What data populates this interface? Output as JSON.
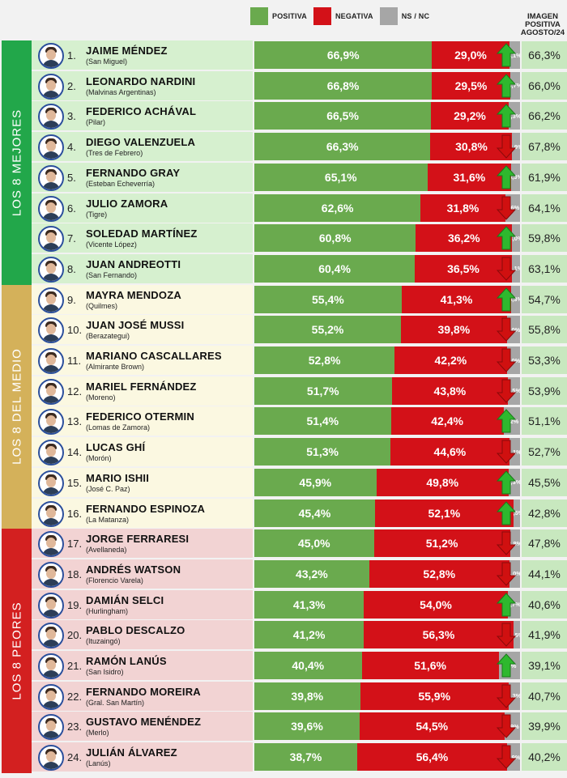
{
  "legend": [
    {
      "label": "POSITIVA",
      "color": "#6aaa4e"
    },
    {
      "label": "NEGATIVA",
      "color": "#d31118"
    },
    {
      "label": "NS / NC",
      "color": "#a6a6a6"
    }
  ],
  "prev_header": [
    "IMAGEN",
    "POSITIVA",
    "AGOSTO/24"
  ],
  "sections": [
    {
      "label": "LOS 8 MEJORES",
      "color": "#22a74a",
      "row_bg": "#d6f0cf"
    },
    {
      "label": "LOS 8 DEL MEDIO",
      "color": "#d4b15a",
      "row_bg": "#fbf8e1"
    },
    {
      "label": "LOS 8 PEORES",
      "color": "#d32020",
      "row_bg": "#f2d3d3"
    }
  ],
  "chart_data": {
    "type": "bar",
    "stacked": true,
    "orientation": "horizontal",
    "series": [
      {
        "name": "POSITIVA",
        "color": "#6aaa4e"
      },
      {
        "name": "NEGATIVA",
        "color": "#d31118"
      },
      {
        "name": "NS / NC",
        "color": "#a6a6a6"
      }
    ],
    "rows": [
      {
        "rank": "1.",
        "name": "JAIME MÉNDEZ",
        "town": "(San Miguel)",
        "pos": 66.9,
        "pos_label": "66,9%",
        "neg": 29.0,
        "neg_label": "29,0%",
        "ns": 4.1,
        "ns_label": "4,1%",
        "trend": "up",
        "prev": "66,3%",
        "section": 0
      },
      {
        "rank": "2.",
        "name": "LEONARDO NARDINI",
        "town": "(Malvinas Argentinas)",
        "pos": 66.8,
        "pos_label": "66,8%",
        "neg": 29.5,
        "neg_label": "29,5%",
        "ns": 3.7,
        "ns_label": "3,7%",
        "trend": "up",
        "prev": "66,0%",
        "section": 0
      },
      {
        "rank": "3.",
        "name": "FEDERICO ACHÁVAL",
        "town": "(Pilar)",
        "pos": 66.5,
        "pos_label": "66,5%",
        "neg": 29.2,
        "neg_label": "29,2%",
        "ns": 4.3,
        "ns_label": "4,3%",
        "trend": "up",
        "prev": "66,2%",
        "section": 0
      },
      {
        "rank": "4.",
        "name": "DIEGO VALENZUELA",
        "town": "(Tres de Febrero)",
        "pos": 66.3,
        "pos_label": "66,3%",
        "neg": 30.8,
        "neg_label": "30,8%",
        "ns": 2.9,
        "ns_label": "2,9%",
        "trend": "down",
        "prev": "67,8%",
        "section": 0
      },
      {
        "rank": "5.",
        "name": "FERNANDO GRAY",
        "town": "(Esteban Echeverría)",
        "pos": 65.1,
        "pos_label": "65,1%",
        "neg": 31.6,
        "neg_label": "31,6%",
        "ns": 3.3,
        "ns_label": "3,3%",
        "trend": "up",
        "prev": "61,9%",
        "section": 0
      },
      {
        "rank": "6.",
        "name": "JULIO ZAMORA",
        "town": "(Tigre)",
        "pos": 62.6,
        "pos_label": "62,6%",
        "neg": 31.8,
        "neg_label": "31,8%",
        "ns": 5.6,
        "ns_label": "5,6%",
        "trend": "down",
        "prev": "64,1%",
        "section": 0
      },
      {
        "rank": "7.",
        "name": "SOLEDAD MARTÍNEZ",
        "town": "(Vicente López)",
        "pos": 60.8,
        "pos_label": "60,8%",
        "neg": 36.2,
        "neg_label": "36,2%",
        "ns": 3.0,
        "ns_label": "3,0%",
        "trend": "up",
        "prev": "59,8%",
        "section": 0
      },
      {
        "rank": "8.",
        "name": "JUAN ANDREOTTI",
        "town": "(San Fernando)",
        "pos": 60.4,
        "pos_label": "60,4%",
        "neg": 36.5,
        "neg_label": "36,5%",
        "ns": 3.1,
        "ns_label": "3,1%",
        "trend": "down",
        "prev": "63,1%",
        "section": 0
      },
      {
        "rank": "9.",
        "name": "MAYRA MENDOZA",
        "town": "(Quilmes)",
        "pos": 55.4,
        "pos_label": "55,4%",
        "neg": 41.3,
        "neg_label": "41,3%",
        "ns": 3.3,
        "ns_label": "3,3%",
        "trend": "up",
        "prev": "54,7%",
        "section": 1
      },
      {
        "rank": "10.",
        "name": "JUAN JOSÉ MUSSI",
        "town": "(Berazategui)",
        "pos": 55.2,
        "pos_label": "55,2%",
        "neg": 39.8,
        "neg_label": "39,8%",
        "ns": 5.0,
        "ns_label": "5,0%",
        "trend": "down",
        "prev": "55,8%",
        "section": 1
      },
      {
        "rank": "11.",
        "name": "MARIANO CASCALLARES",
        "town": "(Almirante Brown)",
        "pos": 52.8,
        "pos_label": "52,8%",
        "neg": 42.2,
        "neg_label": "42,2%",
        "ns": 5.0,
        "ns_label": "5,0%",
        "trend": "down",
        "prev": "53,3%",
        "section": 1
      },
      {
        "rank": "12.",
        "name": "MARIEL FERNÁNDEZ",
        "town": "(Moreno)",
        "pos": 51.7,
        "pos_label": "51,7%",
        "neg": 43.8,
        "neg_label": "43,8%",
        "ns": 4.5,
        "ns_label": "4,5%",
        "trend": "down",
        "prev": "53,9%",
        "section": 1
      },
      {
        "rank": "13.",
        "name": "FEDERICO OTERMIN",
        "town": "(Lomas de Zamora)",
        "pos": 51.4,
        "pos_label": "51,4%",
        "neg": 42.4,
        "neg_label": "42,4%",
        "ns": 6.2,
        "ns_label": "6,2%",
        "trend": "up",
        "prev": "51,1%",
        "section": 1
      },
      {
        "rank": "14.",
        "name": "LUCAS GHÍ",
        "town": "(Morón)",
        "pos": 51.3,
        "pos_label": "51,3%",
        "neg": 44.6,
        "neg_label": "44,6%",
        "ns": 4.1,
        "ns_label": "4,1%",
        "trend": "down",
        "prev": "52,7%",
        "section": 1
      },
      {
        "rank": "15.",
        "name": "MARIO ISHII",
        "town": "(José C. Paz)",
        "pos": 45.9,
        "pos_label": "45,9%",
        "neg": 49.8,
        "neg_label": "49,8%",
        "ns": 4.3,
        "ns_label": "4,3%",
        "trend": "up",
        "prev": "45,5%",
        "section": 1
      },
      {
        "rank": "16.",
        "name": "FERNANDO ESPINOZA",
        "town": "(La Matanza)",
        "pos": 45.4,
        "pos_label": "45,4%",
        "neg": 52.1,
        "neg_label": "52,1%",
        "ns": 2.5,
        "ns_label": "2,5%",
        "trend": "up",
        "prev": "42,8%",
        "section": 1
      },
      {
        "rank": "17.",
        "name": "JORGE FERRARESI",
        "town": "(Avellaneda)",
        "pos": 45.0,
        "pos_label": "45,0%",
        "neg": 51.2,
        "neg_label": "51,2%",
        "ns": 3.8,
        "ns_label": "3,8%",
        "trend": "down",
        "prev": "47,8%",
        "section": 2
      },
      {
        "rank": "18.",
        "name": "ANDRÉS WATSON",
        "town": "(Florencio Varela)",
        "pos": 43.2,
        "pos_label": "43,2%",
        "neg": 52.8,
        "neg_label": "52,8%",
        "ns": 4.0,
        "ns_label": "4,0%",
        "trend": "down",
        "prev": "44,1%",
        "section": 2
      },
      {
        "rank": "19.",
        "name": "DAMIÁN SELCI",
        "town": "(Hurlingham)",
        "pos": 41.3,
        "pos_label": "41,3%",
        "neg": 54.0,
        "neg_label": "54,0%",
        "ns": 4.7,
        "ns_label": "4,7%",
        "trend": "up",
        "prev": "40,6%",
        "section": 2
      },
      {
        "rank": "20.",
        "name": "PABLO DESCALZO",
        "town": "(Ituzaingó)",
        "pos": 41.2,
        "pos_label": "41,2%",
        "neg": 56.3,
        "neg_label": "56,3%",
        "ns": 2.5,
        "ns_label": "2,5%",
        "trend": "down",
        "prev": "41,9%",
        "section": 2
      },
      {
        "rank": "21.",
        "name": "RAMÓN LANÚS",
        "town": "(San Isidro)",
        "pos": 40.4,
        "pos_label": "40,4%",
        "neg": 51.6,
        "neg_label": "51,6%",
        "ns": 8.0,
        "ns_label": "8,0%",
        "trend": "up",
        "prev": "39,1%",
        "section": 2
      },
      {
        "rank": "22.",
        "name": "FERNANDO MOREIRA",
        "town": "(Gral. San Martín)",
        "pos": 39.8,
        "pos_label": "39,8%",
        "neg": 55.9,
        "neg_label": "55,9%",
        "ns": 4.3,
        "ns_label": "4,3%",
        "trend": "down",
        "prev": "40,7%",
        "section": 2
      },
      {
        "rank": "23.",
        "name": "GUSTAVO MENÉNDEZ",
        "town": "(Merlo)",
        "pos": 39.6,
        "pos_label": "39,6%",
        "neg": 54.5,
        "neg_label": "54,5%",
        "ns": 5.9,
        "ns_label": "5,9%",
        "trend": "down",
        "prev": "39,9%",
        "section": 2
      },
      {
        "rank": "24.",
        "name": "JULIÁN ÁLVAREZ",
        "town": "(Lanús)",
        "pos": 38.7,
        "pos_label": "38,7%",
        "neg": 56.4,
        "neg_label": "56,4%",
        "ns": 4.9,
        "ns_label": "4,9%",
        "trend": "down",
        "prev": "40,2%",
        "section": 2
      }
    ]
  }
}
